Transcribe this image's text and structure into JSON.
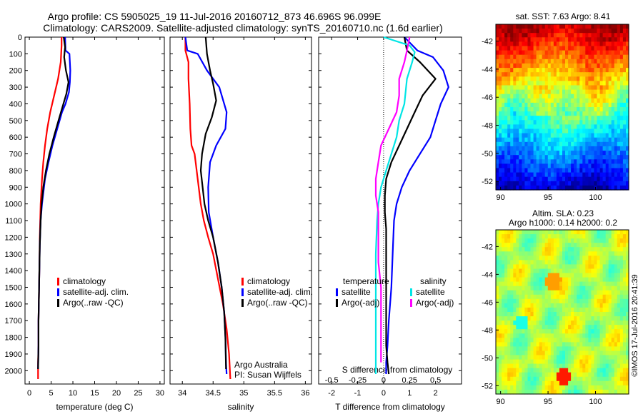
{
  "header": {
    "line1": "Argo profile: CS 5905025_19 11-Jul-2016 20160712_873 46.696S 96.099E",
    "line2": "Climatology: CARS2009. Satellite-adjusted climatology: synTS_20160710.nc (1.6d earlier)"
  },
  "colors": {
    "climatology": "#ff0000",
    "satellite": "#0000ff",
    "argo": "#000000",
    "satellite_salinity": "#00e5e5",
    "argo_salinity": "#ff00ff"
  },
  "chart_data": [
    {
      "id": "temperature",
      "type": "line",
      "xlabel": "temperature (deg C)",
      "xlim": [
        -1,
        31
      ],
      "xticks": [
        0,
        5,
        10,
        15,
        20,
        25,
        30
      ],
      "ylim": [
        2080,
        0
      ],
      "yticks": [
        0,
        100,
        200,
        300,
        400,
        500,
        600,
        700,
        800,
        900,
        1000,
        1100,
        1200,
        1300,
        1400,
        1500,
        1600,
        1700,
        1800,
        1900,
        2000
      ],
      "legend": [
        "climatology",
        "satellite-adj. clim.",
        "Argo(..raw -QC)"
      ],
      "series": [
        {
          "name": "climatology",
          "x": [
            7.4,
            7.4,
            7.3,
            7.2,
            6.6,
            5.7,
            4.8,
            4.1,
            3.6,
            3.2,
            2.9,
            2.6,
            2.5,
            2.4,
            2.3,
            2.2,
            2.1,
            2.1,
            2.0,
            2.0
          ],
          "y": [
            0,
            50,
            100,
            150,
            250,
            350,
            450,
            550,
            650,
            750,
            850,
            1000,
            1100,
            1200,
            1400,
            1550,
            1700,
            1850,
            1950,
            2050
          ]
        },
        {
          "name": "satellite-adj. clim.",
          "x": [
            8.2,
            8.3,
            9.2,
            9.4,
            9.3,
            9.1,
            8.3,
            7.5,
            6.4,
            5.3,
            4.4,
            3.6,
            2.9,
            2.6,
            2.4,
            2.3,
            2.2,
            2.1,
            2.1,
            2.0
          ],
          "y": [
            0,
            80,
            100,
            200,
            270,
            330,
            400,
            450,
            550,
            650,
            750,
            850,
            1000,
            1100,
            1250,
            1400,
            1550,
            1700,
            1850,
            1990
          ]
        },
        {
          "name": "Argo(..raw -QC)",
          "x": [
            7.9,
            8.2,
            8.0,
            8.4,
            9.0,
            8.5,
            7.6,
            6.7,
            5.6,
            4.6,
            3.8,
            3.2,
            2.8,
            2.6,
            2.4,
            2.3,
            2.2,
            2.1,
            2.1,
            2.0
          ],
          "y": [
            0,
            60,
            120,
            200,
            270,
            340,
            420,
            500,
            600,
            700,
            800,
            900,
            1000,
            1100,
            1250,
            1400,
            1550,
            1700,
            1850,
            1990
          ]
        }
      ]
    },
    {
      "id": "salinity",
      "type": "line",
      "xlabel": "salinity",
      "xlim": [
        33.8,
        36.1
      ],
      "xticks": [
        34,
        34.5,
        35,
        35.5,
        36
      ],
      "xtick_labels": [
        "34",
        "34.5",
        "35",
        "35.5",
        "36"
      ],
      "ylim": [
        2080,
        0
      ],
      "legend": [
        "climatology",
        "satellite-adj. clim.",
        "Argo(..raw -QC)"
      ],
      "annotation": [
        "Argo Australia",
        "PI: Susan Wijffels"
      ],
      "series": [
        {
          "name": "climatology",
          "x": [
            34.05,
            34.05,
            34.1,
            34.1,
            34.12,
            34.13,
            34.15,
            34.2,
            34.25,
            34.3,
            34.35,
            34.42,
            34.5,
            34.58,
            34.66,
            34.72,
            34.76,
            34.78
          ],
          "y": [
            0,
            80,
            150,
            250,
            400,
            550,
            650,
            700,
            850,
            1000,
            1100,
            1200,
            1300,
            1450,
            1600,
            1750,
            1900,
            2050
          ]
        },
        {
          "name": "satellite-adj. clim.",
          "x": [
            34.05,
            34.08,
            34.25,
            34.4,
            34.6,
            34.72,
            34.7,
            34.55,
            34.45,
            34.42,
            34.43,
            34.5,
            34.58,
            34.64,
            34.68,
            34.7,
            34.71,
            34.72
          ],
          "y": [
            0,
            80,
            100,
            200,
            300,
            450,
            550,
            650,
            750,
            900,
            1050,
            1200,
            1350,
            1500,
            1650,
            1800,
            1950,
            2020
          ]
        },
        {
          "name": "Argo(..raw -QC)",
          "x": [
            34.38,
            34.4,
            34.45,
            34.5,
            34.55,
            34.48,
            34.38,
            34.32,
            34.3,
            34.33,
            34.36,
            34.42,
            34.5,
            34.58,
            34.64,
            34.68,
            34.7,
            34.71
          ],
          "y": [
            0,
            100,
            200,
            280,
            380,
            480,
            580,
            700,
            800,
            900,
            1000,
            1100,
            1200,
            1350,
            1500,
            1650,
            1800,
            1990
          ]
        }
      ]
    },
    {
      "id": "difference",
      "type": "line",
      "xlabel": "T difference from climatology",
      "top_label": "S difference from climatology",
      "xlim": [
        -2.5,
        3.0
      ],
      "xticks": [
        -2,
        -1,
        0,
        1,
        2
      ],
      "s_tick_labels": [
        "-0.5",
        "-0.25",
        "0",
        "0.25",
        "0.5"
      ],
      "s_tick_positions": [
        -2,
        -1,
        0,
        1,
        2
      ],
      "ylim": [
        2080,
        0
      ],
      "legend_temperature_title": "temperature",
      "legend_salinity_title": "salinity",
      "legend": [
        "satellite",
        "Argo(-adj)",
        "satellite",
        "Argo(-adj)"
      ],
      "series": [
        {
          "name": "T satellite",
          "x": [
            0.8,
            1.3,
            1.9,
            2.3,
            2.5,
            2.2,
            2.0,
            1.8,
            1.4,
            1.0,
            0.7,
            0.5,
            0.4,
            0.35,
            0.3,
            0.2,
            0.15,
            0.1,
            0.1
          ],
          "y": [
            0,
            80,
            120,
            200,
            300,
            400,
            500,
            600,
            700,
            800,
            900,
            1000,
            1100,
            1300,
            1500,
            1700,
            1850,
            1950,
            2020
          ]
        },
        {
          "name": "T Argo(-adj)",
          "x": [
            0.8,
            0.9,
            1.4,
            2.0,
            1.5,
            1.2,
            0.9,
            0.6,
            0.3,
            0.1,
            0.05,
            0.05,
            0.1,
            0.1,
            0.1,
            0.1,
            0.1,
            0.15,
            0.2
          ],
          "y": [
            0,
            80,
            150,
            250,
            350,
            450,
            550,
            650,
            750,
            850,
            950,
            1050,
            1150,
            1300,
            1500,
            1700,
            1850,
            1950,
            2020
          ]
        },
        {
          "name": "S satellite",
          "x": [
            0.0,
            1.0,
            1.2,
            1.1,
            0.9,
            0.8,
            0.6,
            0.5,
            0.3,
            0.1,
            -0.1,
            -0.2,
            -0.25,
            -0.3,
            -0.3,
            -0.3,
            -0.3,
            -0.3,
            -0.3
          ],
          "y": [
            0,
            50,
            90,
            150,
            250,
            400,
            500,
            600,
            700,
            800,
            900,
            1000,
            1100,
            1300,
            1500,
            1700,
            1850,
            1950,
            2020
          ]
        },
        {
          "name": "S Argo(-adj)",
          "x": [
            1.0,
            0.9,
            0.8,
            0.6,
            0.6,
            0.5,
            0.2,
            -0.1,
            -0.2,
            -0.3,
            -0.3,
            -0.2,
            -0.2,
            -0.2,
            -0.1,
            -0.1,
            -0.1,
            -0.1
          ],
          "y": [
            0,
            80,
            150,
            250,
            350,
            450,
            550,
            650,
            750,
            850,
            950,
            1050,
            1200,
            1350,
            1500,
            1650,
            1800,
            1950
          ]
        }
      ]
    },
    {
      "id": "sst_map",
      "type": "heatmap",
      "title": "sat. SST: 7.63 Argo: 8.41",
      "xticks": [
        90,
        95,
        100
      ],
      "yticks": [
        -42,
        -44,
        -46,
        -48,
        -50,
        -52
      ],
      "xlim": [
        89.5,
        103.5
      ],
      "ylim": [
        -52.6,
        -40.8
      ],
      "colormap": "jet",
      "profile_marker": false
    },
    {
      "id": "sla_map",
      "type": "heatmap",
      "title": "Altim. SLA: 0.23",
      "subtitle": "Argo h1000: 0.14 h2000: 0.2",
      "xticks": [
        90,
        95,
        100
      ],
      "yticks": [
        -42,
        -44,
        -46,
        -48,
        -50,
        -52
      ],
      "xlim": [
        89.5,
        103.5
      ],
      "ylim": [
        -52.6,
        -40.8
      ],
      "colormap": "jet"
    }
  ],
  "credit": "©IMOS 17-Jul-2016 20:41:39"
}
